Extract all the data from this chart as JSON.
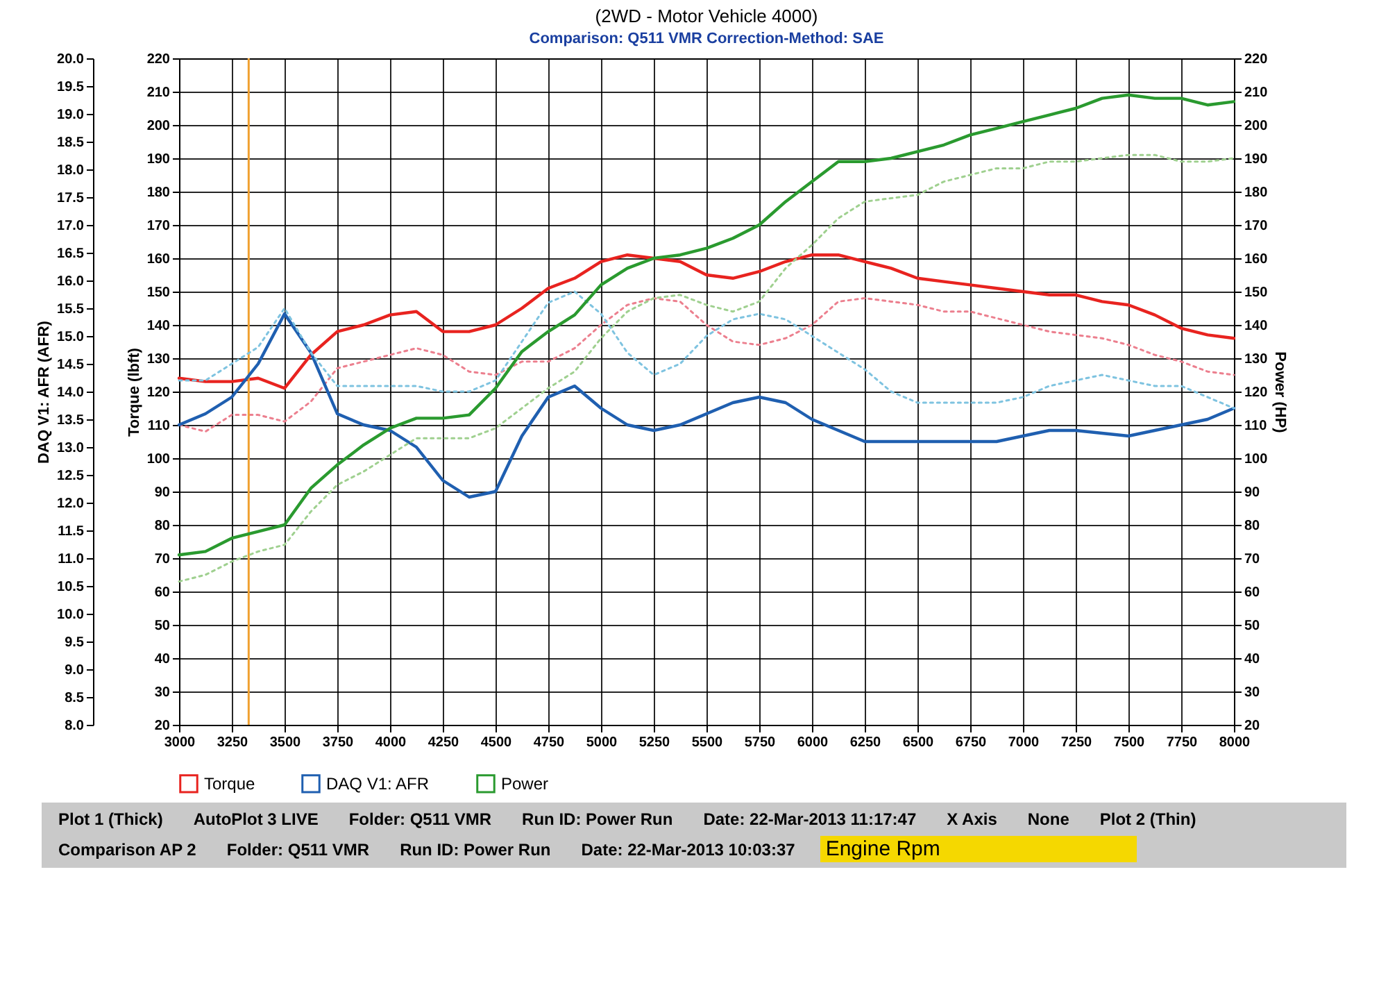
{
  "chart_data": {
    "type": "line",
    "title": "(2WD - Motor Vehicle 4000)",
    "subtitle": "Comparison: Q511 VMR     Correction-Method: SAE",
    "xlabel": "Engine Rpm",
    "ylabel": "Torque (lbft)",
    "y2label": "DAQ V1: AFR (AFR)",
    "y3label": "Power (HP)",
    "x": [
      3000,
      3125,
      3250,
      3375,
      3500,
      3625,
      3750,
      3875,
      4000,
      4125,
      4250,
      4375,
      4500,
      4625,
      4750,
      4875,
      5000,
      5125,
      5250,
      5375,
      5500,
      5625,
      5750,
      5875,
      6000,
      6125,
      6250,
      6375,
      6500,
      6625,
      6750,
      6875,
      7000,
      7125,
      7250,
      7375,
      7500,
      7625,
      7750,
      7875,
      8000
    ],
    "xlim": [
      3000,
      8000
    ],
    "xticks": [
      3000,
      3250,
      3500,
      3750,
      4000,
      4250,
      4500,
      4750,
      5000,
      5250,
      5500,
      5750,
      6000,
      6250,
      6500,
      6750,
      7000,
      7250,
      7500,
      7750,
      8000
    ],
    "ylim": [
      20,
      220
    ],
    "yticks": [
      20,
      30,
      40,
      50,
      60,
      70,
      80,
      90,
      100,
      110,
      120,
      130,
      140,
      150,
      160,
      170,
      180,
      190,
      200,
      210,
      220
    ],
    "y2lim": [
      8,
      20
    ],
    "y2ticks": [
      {
        "value": 8,
        "label": "8.0"
      },
      8.5,
      {
        "value": 9,
        "label": "9.0"
      },
      9.5,
      {
        "value": 10,
        "label": "10.0"
      },
      10.5,
      {
        "value": 11,
        "label": "11.0"
      },
      11.5,
      {
        "value": 12,
        "label": "12.0"
      },
      12.5,
      {
        "value": 13,
        "label": "13.0"
      },
      13.5,
      {
        "value": 14,
        "label": "14.0"
      },
      14.5,
      {
        "value": 15,
        "label": "15.0"
      },
      15.5,
      {
        "value": 16,
        "label": "16.0"
      },
      16.5,
      {
        "value": 17,
        "label": "17.0"
      },
      17.5,
      {
        "value": 18,
        "label": "18.0"
      },
      18.5,
      {
        "value": 19,
        "label": "19.0"
      },
      19.5,
      {
        "value": 20,
        "label": "20.0"
      }
    ],
    "y3lim": [
      20,
      220
    ],
    "y3ticks": [
      20,
      30,
      40,
      50,
      60,
      70,
      80,
      90,
      100,
      110,
      120,
      130,
      140,
      150,
      160,
      170,
      180,
      190,
      200,
      210,
      220
    ],
    "grid": true,
    "legend": "bottom",
    "series": [
      {
        "name": "Torque",
        "color": "#e8231f",
        "line_style": "solid",
        "values": [
          124,
          123,
          123,
          124,
          121,
          131,
          138,
          140,
          143,
          144,
          138,
          138,
          140,
          145,
          151,
          154,
          159,
          161,
          160,
          159,
          155,
          154,
          156,
          159,
          161,
          161,
          159,
          157,
          154,
          153,
          152,
          151,
          150,
          149,
          149,
          147,
          146,
          143,
          139,
          137,
          136
        ]
      },
      {
        "name": "DAQ V1: AFR",
        "color": "#1f5fb0",
        "axis": "y2",
        "line_style": "solid",
        "values": [
          13.4,
          13.6,
          13.9,
          14.5,
          15.4,
          14.7,
          13.6,
          13.4,
          13.3,
          13.0,
          12.4,
          12.1,
          12.2,
          13.2,
          13.9,
          14.1,
          13.7,
          13.4,
          13.3,
          13.4,
          13.6,
          13.8,
          13.9,
          13.8,
          13.5,
          13.3,
          13.1,
          13.1,
          13.1,
          13.1,
          13.1,
          13.1,
          13.2,
          13.3,
          13.3,
          13.25,
          13.2,
          13.3,
          13.4,
          13.5,
          13.7
        ]
      },
      {
        "name": "Power",
        "color": "#2a9a2f",
        "axis": "y3",
        "line_style": "solid",
        "values": [
          71,
          72,
          76,
          78,
          80,
          91,
          98,
          104,
          109,
          112,
          112,
          113,
          121,
          132,
          138,
          143,
          152,
          157,
          160,
          161,
          163,
          166,
          170,
          177,
          183,
          189,
          189,
          190,
          192,
          194,
          197,
          199,
          201,
          203,
          205,
          208,
          209,
          208,
          208,
          206,
          207
        ]
      },
      {
        "color": "#ec7f8e",
        "line_style": "dotted",
        "values": [
          110,
          108,
          113,
          113,
          111,
          117,
          127,
          129,
          131,
          133,
          131,
          126,
          125,
          129,
          129,
          133,
          140,
          146,
          148,
          147,
          140,
          135,
          134,
          136,
          140,
          147,
          148,
          147,
          146,
          144,
          144,
          142,
          140,
          138,
          137,
          136,
          134,
          131,
          129,
          126,
          125
        ]
      },
      {
        "color": "#7ec3e0",
        "axis": "y2",
        "line_style": "dotted",
        "values": [
          14.2,
          14.2,
          14.5,
          14.8,
          15.5,
          14.7,
          14.1,
          14.1,
          14.1,
          14.1,
          14.0,
          14.0,
          14.2,
          14.9,
          15.6,
          15.8,
          15.4,
          14.7,
          14.3,
          14.5,
          15.0,
          15.3,
          15.4,
          15.3,
          15.0,
          14.7,
          14.4,
          14.0,
          13.8,
          13.8,
          13.8,
          13.8,
          13.9,
          14.1,
          14.2,
          14.3,
          14.2,
          14.1,
          14.1,
          13.9,
          13.7
        ]
      },
      {
        "color": "#9fd08f",
        "axis": "y3",
        "line_style": "dotted",
        "values": [
          63,
          65,
          69,
          72,
          74,
          84,
          92,
          96,
          101,
          106,
          106,
          106,
          109,
          115,
          121,
          126,
          136,
          144,
          148,
          149,
          146,
          144,
          147,
          157,
          164,
          172,
          177,
          178,
          179,
          183,
          185,
          187,
          187,
          189,
          189,
          190,
          191,
          191,
          189,
          189,
          190
        ]
      }
    ],
    "ref_lines": [
      {
        "axis": "x",
        "value": 3330,
        "color": "#f0a030"
      }
    ],
    "annotations": [
      "Plot 1 (Thick)",
      "AutoPlot 3 LIVE",
      "Folder: Q511 VMR",
      "Run ID: Power Run",
      "Date: 22-Mar-2013 11:17:47",
      "X Axis",
      "None",
      "Plot 2 (Thin)",
      "Comparison AP 2",
      "Folder: Q511 VMR",
      "Run ID: Power Run",
      "Date: 22-Mar-2013 10:03:37"
    ]
  }
}
